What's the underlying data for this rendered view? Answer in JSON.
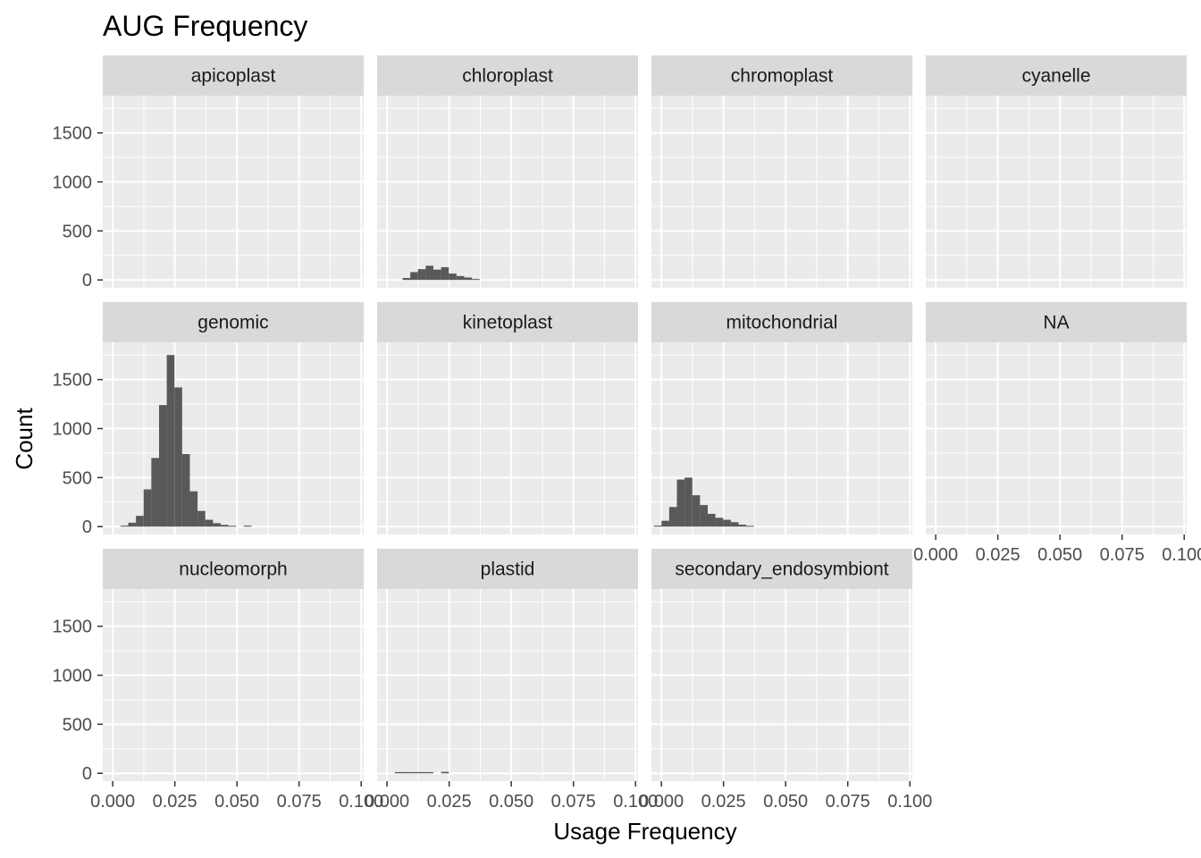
{
  "chart_data": {
    "type": "histogram",
    "title": "AUG Frequency",
    "xlabel": "Usage Frequency",
    "ylabel": "Count",
    "xlim": [
      -0.004,
      0.101
    ],
    "ylim": [
      -80,
      1880
    ],
    "x_ticks": [
      "0.000",
      "0.025",
      "0.050",
      "0.075",
      "0.100"
    ],
    "x_tick_values": [
      0,
      0.025,
      0.05,
      0.075,
      0.1
    ],
    "y_ticks": [
      "0",
      "500",
      "1000",
      "1500"
    ],
    "y_tick_values": [
      0,
      500,
      1000,
      1500
    ],
    "bin_width": 0.0031,
    "bar_color": "#595959",
    "panel_background": "#ebebeb",
    "strip_background": "#d9d9d9",
    "grid": true,
    "facets": [
      {
        "name": "apicoplast",
        "bins": []
      },
      {
        "name": "chloroplast",
        "bins": [
          {
            "x": 0.0078,
            "count": 20
          },
          {
            "x": 0.0109,
            "count": 80
          },
          {
            "x": 0.014,
            "count": 110
          },
          {
            "x": 0.0171,
            "count": 145
          },
          {
            "x": 0.0202,
            "count": 105
          },
          {
            "x": 0.0233,
            "count": 130
          },
          {
            "x": 0.0264,
            "count": 65
          },
          {
            "x": 0.0295,
            "count": 40
          },
          {
            "x": 0.0326,
            "count": 25
          },
          {
            "x": 0.0357,
            "count": 10
          }
        ]
      },
      {
        "name": "chromoplast",
        "bins": []
      },
      {
        "name": "cyanelle",
        "bins": []
      },
      {
        "name": "genomic",
        "bins": [
          {
            "x": 0.0047,
            "count": 10
          },
          {
            "x": 0.0078,
            "count": 40
          },
          {
            "x": 0.0109,
            "count": 110
          },
          {
            "x": 0.014,
            "count": 380
          },
          {
            "x": 0.0171,
            "count": 700
          },
          {
            "x": 0.0202,
            "count": 1240
          },
          {
            "x": 0.0233,
            "count": 1750
          },
          {
            "x": 0.0264,
            "count": 1420
          },
          {
            "x": 0.0295,
            "count": 740
          },
          {
            "x": 0.0326,
            "count": 360
          },
          {
            "x": 0.0357,
            "count": 160
          },
          {
            "x": 0.0388,
            "count": 70
          },
          {
            "x": 0.0419,
            "count": 35
          },
          {
            "x": 0.045,
            "count": 18
          },
          {
            "x": 0.0481,
            "count": 8
          },
          {
            "x": 0.0543,
            "count": 10
          }
        ]
      },
      {
        "name": "kinetoplast",
        "bins": []
      },
      {
        "name": "mitochondrial",
        "bins": [
          {
            "x": -0.0015,
            "count": 10
          },
          {
            "x": 0.0016,
            "count": 60
          },
          {
            "x": 0.0047,
            "count": 200
          },
          {
            "x": 0.0078,
            "count": 480
          },
          {
            "x": 0.0109,
            "count": 500
          },
          {
            "x": 0.014,
            "count": 320
          },
          {
            "x": 0.0171,
            "count": 220
          },
          {
            "x": 0.0202,
            "count": 130
          },
          {
            "x": 0.0233,
            "count": 90
          },
          {
            "x": 0.0264,
            "count": 70
          },
          {
            "x": 0.0295,
            "count": 45
          },
          {
            "x": 0.0326,
            "count": 20
          },
          {
            "x": 0.0357,
            "count": 8
          }
        ]
      },
      {
        "name": "NA",
        "bins": []
      },
      {
        "name": "nucleomorph",
        "bins": []
      },
      {
        "name": "plastid",
        "bins": [
          {
            "x": 0.0047,
            "count": 12
          },
          {
            "x": 0.0078,
            "count": 12
          },
          {
            "x": 0.0109,
            "count": 12
          },
          {
            "x": 0.014,
            "count": 12
          },
          {
            "x": 0.0171,
            "count": 12
          },
          {
            "x": 0.0233,
            "count": 15
          }
        ]
      },
      {
        "name": "secondary_endosymbiont",
        "bins": []
      }
    ]
  }
}
